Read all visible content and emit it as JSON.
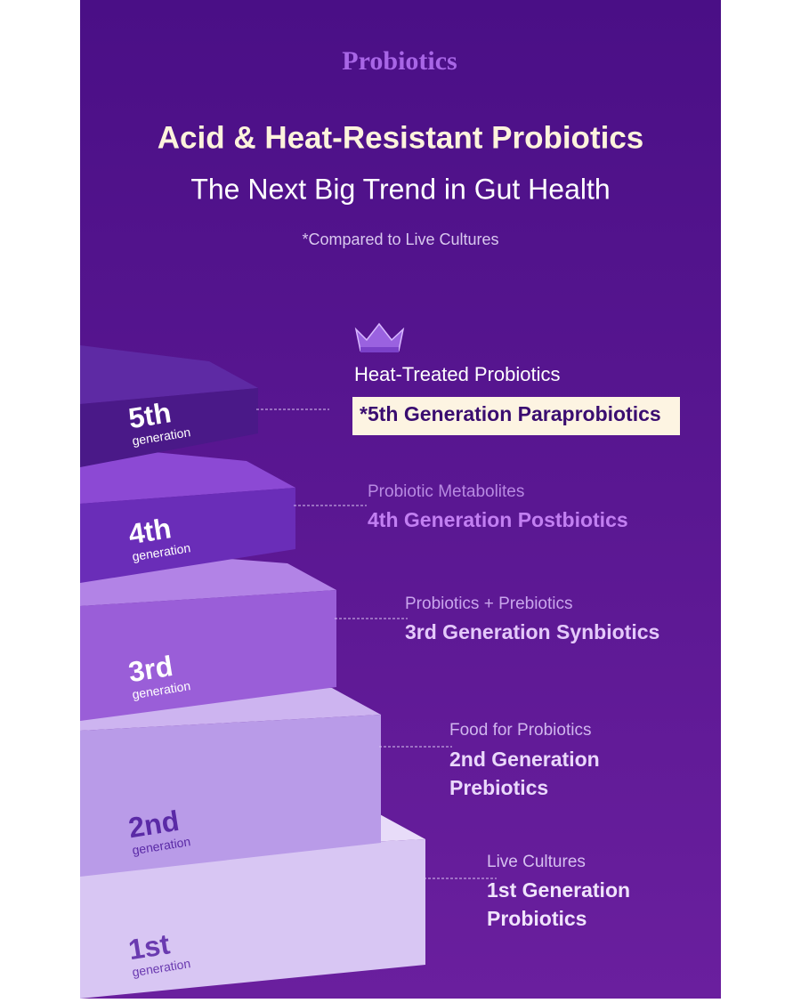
{
  "header": {
    "label": "Probiotics",
    "title": "Acid & Heat-Resistant Probiotics",
    "subtitle": "The Next Big Trend in Gut Health",
    "note": "*Compared to Live Cultures"
  },
  "generations": [
    {
      "number": "5th",
      "unit": "generation",
      "kind": "Heat-Treated Probiotics",
      "name": [
        "*5th Generation Paraprobiotics"
      ]
    },
    {
      "number": "4th",
      "unit": "generation",
      "kind": "Probiotic Metabolites",
      "name": [
        "4th Generation Postbiotics"
      ]
    },
    {
      "number": "3rd",
      "unit": "generation",
      "kind": "Probiotics + Prebiotics",
      "name": [
        "3rd Generation Synbiotics"
      ]
    },
    {
      "number": "2nd",
      "unit": "generation",
      "kind": "Food for Probiotics",
      "name": [
        "2nd Generation",
        "Prebiotics"
      ]
    },
    {
      "number": "1st",
      "unit": "generation",
      "kind": "Live Cultures",
      "name": [
        "1st Generation",
        "Probiotics"
      ]
    }
  ]
}
